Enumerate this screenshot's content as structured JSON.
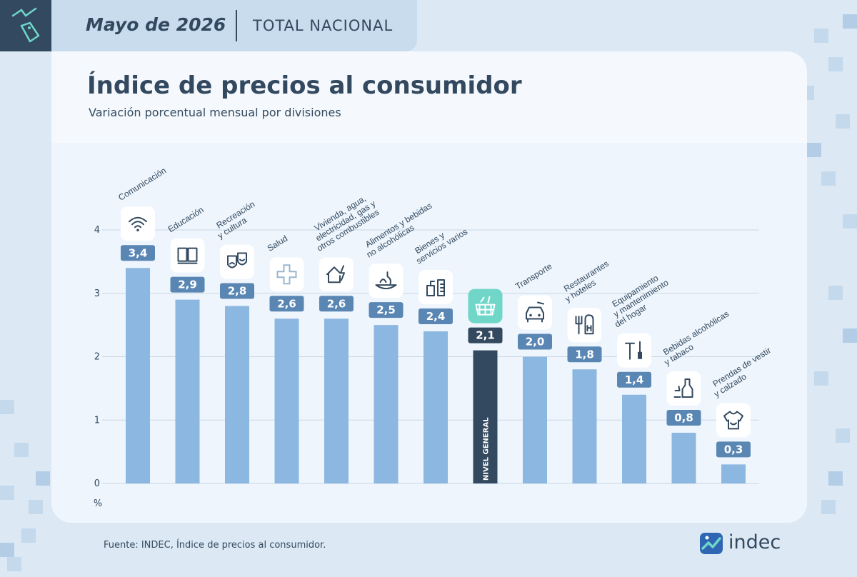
{
  "header": {
    "date": "Mayo de 2026",
    "scope": "TOTAL NACIONAL"
  },
  "colors": {
    "bar": "#8cb7e0",
    "bar_highlight": "#33495f",
    "label_bg": "#5a86b4",
    "label_bg_highlight": "#33495f",
    "icon_highlight_bg": "#6fd6c8",
    "accent_teal": "#5fcfc0"
  },
  "chart_data": {
    "type": "bar",
    "title": "Índice de precios al consumidor",
    "subtitle": "Variación porcentual mensual por divisiones",
    "ylabel": "%",
    "ylim": [
      0,
      4
    ],
    "yticks": [
      "0",
      "1",
      "2",
      "3",
      "4"
    ],
    "grid": true,
    "categories": [
      [
        "Comunicación"
      ],
      [
        "Educación"
      ],
      [
        "Recreación",
        "y cultura"
      ],
      [
        "Salud"
      ],
      [
        "Vivienda, agua,",
        "electricidad, gas y",
        "otros combustibles"
      ],
      [
        "Alimentos y bebidas",
        "no alcohólicas"
      ],
      [
        "Bienes y",
        "servicios varios"
      ],
      [
        "NIVEL GENERAL"
      ],
      [
        "Transporte"
      ],
      [
        "Restaurantes",
        "y hoteles"
      ],
      [
        "Equipamiento",
        "y mantenimiento",
        "del hogar"
      ],
      [
        "Bebidas alcohólicas",
        "y tabaco"
      ],
      [
        "Prendas de vestir",
        "y calzado"
      ]
    ],
    "values": [
      3.4,
      2.9,
      2.8,
      2.6,
      2.6,
      2.5,
      2.4,
      2.1,
      2.0,
      1.8,
      1.4,
      0.8,
      0.3
    ],
    "value_labels": [
      "3,4",
      "2,9",
      "2,8",
      "2,6",
      "2,6",
      "2,5",
      "2,4",
      "2,1",
      "2,0",
      "1,8",
      "1,4",
      "0,8",
      "0,3"
    ],
    "highlight_index": 7,
    "icons": [
      "wifi-icon",
      "book-icon",
      "theater-masks-icon",
      "medical-cross-icon",
      "house-energy-icon",
      "food-basket-icon",
      "toiletries-icon",
      "shopping-basket-icon",
      "car-icon",
      "fork-hotel-icon",
      "tools-icon",
      "bottle-icon",
      "tshirt-icon"
    ]
  },
  "source": "Fuente: INDEC, Índice de precios al consumidor.",
  "logo": {
    "text": "indec"
  }
}
